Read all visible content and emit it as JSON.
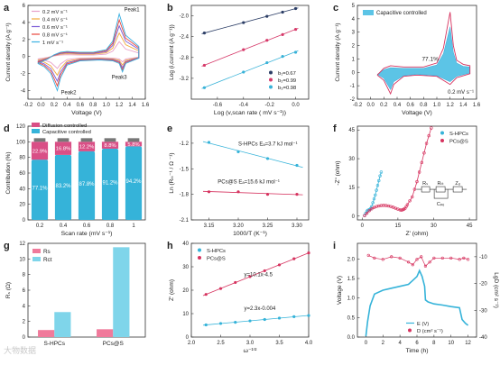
{
  "chart_data": [
    {
      "panel": "a",
      "type": "line",
      "xlabel": "Voltage (V)",
      "ylabel": "Current density (A g⁻¹)",
      "xlim": [
        -0.2,
        1.6
      ],
      "ylim": [
        -5,
        6
      ],
      "xticks": [
        "-0.2",
        "0.0",
        "0.2",
        "0.4",
        "0.6",
        "0.8",
        "1.0",
        "1.2",
        "1.4",
        "1.6"
      ],
      "yticks": [
        "-4",
        "-2",
        "0",
        "2",
        "4",
        "6"
      ],
      "legend_position": "top-left",
      "annotations": [
        "Peak1",
        "Peak2",
        "Peak3"
      ],
      "series": [
        {
          "name": "0.2 mV s⁻¹",
          "color": "#e8a0c8",
          "scale": 0.35
        },
        {
          "name": "0.4 mV s⁻¹",
          "color": "#f2a93b",
          "scale": 0.55
        },
        {
          "name": "0.6 mV s⁻¹",
          "color": "#7b5cd6",
          "scale": 0.72
        },
        {
          "name": "0.8 mV s⁻¹",
          "color": "#e8453c",
          "scale": 0.86
        },
        {
          "name": "1 mV s⁻¹",
          "color": "#3ab0e2",
          "scale": 1.0
        }
      ],
      "base_curve_x": [
        -0.05,
        0.1,
        0.2,
        0.3,
        0.4,
        0.6,
        0.8,
        1.0,
        1.1,
        1.2,
        1.3,
        1.5,
        1.5,
        1.3,
        1.25,
        1.2,
        1.1,
        0.9,
        0.6,
        0.4,
        0.3,
        0.25,
        0.15,
        0.05,
        -0.05
      ],
      "base_curve_y": [
        -0.8,
        -0.3,
        0.2,
        0.5,
        0.6,
        0.5,
        0.5,
        0.8,
        1.8,
        5.0,
        2.5,
        1.2,
        -0.2,
        -0.8,
        -1.8,
        -0.8,
        -0.5,
        -0.4,
        -0.5,
        -1.0,
        -2.5,
        -4.0,
        -2.0,
        -1.2,
        -0.8
      ]
    },
    {
      "panel": "b",
      "type": "scatter",
      "xlabel": "Log (v,scan rate ( mV s⁻¹))",
      "ylabel": "Log (i,current (A g⁻¹))",
      "xlim": [
        -0.8,
        0.1
      ],
      "ylim": [
        -3.6,
        -1.8
      ],
      "xticks": [
        "-0.6",
        "-0.4",
        "-0.2",
        "0.0"
      ],
      "yticks": [
        "-2.0",
        "-2.4",
        "-2.8",
        "-3.2"
      ],
      "legend_position": "bottom-right",
      "x": [
        -0.7,
        -0.4,
        -0.22,
        -0.1,
        0.0
      ],
      "series": [
        {
          "name": "b₁=0.67",
          "color": "#2c3e66",
          "values": [
            -2.33,
            -2.13,
            -2.01,
            -1.93,
            -1.86
          ]
        },
        {
          "name": "b₂=0.99",
          "color": "#d63a6a",
          "values": [
            -2.95,
            -2.65,
            -2.47,
            -2.36,
            -2.26
          ]
        },
        {
          "name": "b₃=0.98",
          "color": "#38b2d8",
          "values": [
            -3.38,
            -3.08,
            -2.9,
            -2.78,
            -2.7
          ]
        }
      ]
    },
    {
      "panel": "c",
      "type": "line",
      "xlabel": "Voltage (V)",
      "ylabel": "Current density (A g⁻¹)",
      "xlim": [
        -0.2,
        1.6
      ],
      "ylim": [
        -2,
        5
      ],
      "xticks": [
        "-0.2",
        "0.0",
        "0.2",
        "0.4",
        "0.6",
        "0.8",
        "1.0",
        "1.2",
        "1.4",
        "1.6"
      ],
      "yticks": [
        "-2",
        "-1",
        "0",
        "1",
        "2",
        "3",
        "4",
        "5"
      ],
      "legend": "Capacitive controlled",
      "annotation": "77.1%",
      "annotation2": "0.2 mV s⁻¹",
      "total_x": [
        0.1,
        0.2,
        0.3,
        0.5,
        0.8,
        1.0,
        1.1,
        1.2,
        1.25,
        1.3,
        1.4,
        1.5,
        1.5,
        1.3,
        1.2,
        1.0,
        0.7,
        0.5,
        0.35,
        0.3,
        0.2,
        0.1
      ],
      "total_y": [
        -0.2,
        0.3,
        0.5,
        0.4,
        0.4,
        0.7,
        1.8,
        4.5,
        2.0,
        0.9,
        0.6,
        0.5,
        -0.1,
        -0.4,
        -0.9,
        -0.3,
        -0.2,
        -0.3,
        -0.9,
        -1.6,
        -0.6,
        -0.2
      ],
      "cap_x": [
        0.1,
        0.2,
        0.3,
        0.5,
        0.8,
        1.0,
        1.1,
        1.2,
        1.25,
        1.3,
        1.4,
        1.5,
        1.5,
        1.3,
        1.2,
        1.0,
        0.7,
        0.5,
        0.35,
        0.3,
        0.2,
        0.1
      ],
      "cap_y": [
        -0.15,
        0.2,
        0.35,
        0.3,
        0.3,
        0.55,
        1.4,
        3.4,
        1.5,
        0.7,
        0.45,
        0.4,
        -0.05,
        -0.3,
        -0.7,
        -0.25,
        -0.15,
        -0.25,
        -0.7,
        -1.3,
        -0.45,
        -0.15
      ]
    },
    {
      "panel": "d",
      "type": "bar",
      "xlabel": "Scan rate (mV s⁻¹)",
      "ylabel": "Contribution (%)",
      "ylim": [
        0,
        120
      ],
      "yticks": [
        "0",
        "20",
        "40",
        "60",
        "80",
        "100",
        "120"
      ],
      "categories": [
        "0.2",
        "0.4",
        "0.6",
        "0.8",
        "1"
      ],
      "series": [
        {
          "name": "Capacitive controlled",
          "color": "#35b3d9",
          "values": [
            77.1,
            83.2,
            87.8,
            91.2,
            94.2
          ]
        },
        {
          "name": "Diffusion controlled",
          "color": "#d94f86",
          "values": [
            22.9,
            16.8,
            12.2,
            8.8,
            5.8
          ]
        }
      ],
      "cap_labels": [
        "77.1%",
        "83.2%",
        "87.8%",
        "91.2%",
        "94.2%"
      ],
      "diff_labels": [
        "22.9%",
        "16.8%",
        "12.2%",
        "8.8%",
        "5.8%"
      ]
    },
    {
      "panel": "e",
      "type": "scatter",
      "xlabel": "1000/T (K⁻¹)",
      "ylabel": "Ln (Rₜₜ⁻¹ / Ω ⁻¹)",
      "xlim": [
        3.12,
        3.32
      ],
      "ylim": [
        -2.1,
        -1.0
      ],
      "xticks": [
        "3.15",
        "3.20",
        "3.25",
        "3.30"
      ],
      "yticks": [
        "-1.2",
        "-1.5",
        "-1.8",
        "-2.1"
      ],
      "x": [
        3.15,
        3.2,
        3.25,
        3.3
      ],
      "series": [
        {
          "name": "S-HPCs",
          "color": "#35b3d9",
          "values": [
            -1.19,
            -1.3,
            -1.38,
            -1.46
          ]
        },
        {
          "name": "PCs@S",
          "color": "#d6335f",
          "values": [
            -1.77,
            -1.77,
            -1.8,
            -1.8
          ]
        }
      ],
      "labels": [
        "S-HPCs Eₐ=3.7 kJ mol⁻¹",
        "PCs@S Eₐ=15.6 kJ mol⁻¹"
      ]
    },
    {
      "panel": "f",
      "type": "scatter",
      "xlabel": "Z' (ohm)",
      "ylabel": "-Z\" (ohm)",
      "xlim": [
        -2,
        48
      ],
      "ylim": [
        -2,
        47
      ],
      "xticks": [
        "0",
        "15",
        "30",
        "45"
      ],
      "yticks": [
        "0",
        "15",
        "30",
        "45"
      ],
      "legend_position": "top-right",
      "series": [
        {
          "name": "S-HPCs",
          "color": "#35b3d9",
          "x": [
            1,
            1.5,
            2,
            2.5,
            3,
            3.3,
            3.6,
            4,
            4.5,
            5,
            5.5,
            6,
            6.5,
            7,
            7.5,
            8
          ],
          "y": [
            0.3,
            1.5,
            2.6,
            3.1,
            3.3,
            3.5,
            4.0,
            5,
            7,
            9,
            11,
            13.5,
            16,
            18.5,
            21,
            23
          ]
        },
        {
          "name": "PCs@S",
          "color": "#d6335f",
          "x": [
            1,
            2,
            3,
            4,
            5,
            6,
            7,
            8,
            9,
            10,
            11,
            12,
            13,
            14,
            15,
            16,
            16.5,
            17,
            17.5,
            18,
            18.5,
            19,
            20,
            21,
            22,
            23,
            24,
            25,
            26,
            27,
            28,
            29
          ],
          "y": [
            0.2,
            1.5,
            2.8,
            3.8,
            4.5,
            5,
            5.3,
            5.5,
            5.6,
            5.5,
            5.3,
            5,
            4.6,
            4.1,
            3.6,
            3.2,
            3.1,
            3.3,
            3.6,
            4,
            5,
            6,
            8,
            10,
            14,
            18,
            23,
            28,
            33,
            38,
            42,
            46
          ]
        }
      ],
      "circuit_labels": [
        "Rₛ",
        "Rₜₜ",
        "Zᵤ",
        "Cₚₑ"
      ]
    },
    {
      "panel": "g",
      "type": "bar",
      "ylabel": "Rₛ (Ω)",
      "ylim": [
        0,
        12
      ],
      "yticks": [
        "0",
        "2",
        "4",
        "6",
        "8",
        "10",
        "12"
      ],
      "categories": [
        "S-HPCs",
        "PCs@S"
      ],
      "legend_position": "top-left",
      "series": [
        {
          "name": "Rs",
          "color": "#f07a9b",
          "values": [
            0.9,
            1.0
          ]
        },
        {
          "name": "Rct",
          "color": "#7fd5ea",
          "values": [
            3.2,
            11.5
          ]
        }
      ]
    },
    {
      "panel": "h",
      "type": "scatter",
      "xlabel": "ω⁻¹′²",
      "ylabel": "Z' (ohm)",
      "xlim": [
        2.0,
        4.0
      ],
      "ylim": [
        0,
        40
      ],
      "xticks": [
        "2.0",
        "2.5",
        "3.0",
        "3.5",
        "4.0"
      ],
      "yticks": [
        "0",
        "10",
        "20",
        "30",
        "40"
      ],
      "legend_position": "top-left",
      "x": [
        2.25,
        2.5,
        2.75,
        3.0,
        3.25,
        3.5,
        3.75,
        4.0
      ],
      "series": [
        {
          "name": "S-HPCs",
          "color": "#35b3d9",
          "values": [
            5.2,
            5.8,
            6.3,
            6.9,
            7.5,
            8.1,
            8.7,
            9.2
          ]
        },
        {
          "name": "PCs@S",
          "color": "#d6335f",
          "values": [
            18.2,
            20.7,
            23.3,
            25.8,
            28.3,
            30.8,
            33.4,
            35.9
          ]
        }
      ],
      "fit_labels": [
        "y=10.1x-4.5",
        "y=2.3x-0.004"
      ]
    },
    {
      "panel": "i",
      "type": "line",
      "xlabel": "Time (h)",
      "ylabel": "Voltage (V)",
      "ylabel_right": "LgD (cm² s⁻¹)",
      "xlim": [
        -1,
        13
      ],
      "ylim": [
        0,
        2.4
      ],
      "ylim_right": [
        -40,
        -5
      ],
      "xticks": [
        "0",
        "2",
        "4",
        "6",
        "8",
        "10",
        "12"
      ],
      "yticks": [
        "0.0",
        "0.5",
        "1.0",
        "1.5",
        "2.0"
      ],
      "yticks_right": [
        "-10",
        "-20",
        "-30",
        "-40"
      ],
      "legend_position": "bottom-right",
      "series": [
        {
          "name": "E (V)",
          "color": "#35b3d9",
          "x": [
            0,
            0.2,
            0.5,
            1,
            2,
            3,
            4,
            5,
            5.5,
            6,
            6.3,
            6.6,
            6.9,
            7,
            7.3,
            8,
            9,
            10,
            11,
            11.3,
            11.7,
            12
          ],
          "y": [
            0.02,
            0.4,
            0.8,
            1.1,
            1.2,
            1.25,
            1.3,
            1.35,
            1.45,
            1.55,
            1.7,
            1.55,
            1.3,
            0.95,
            0.9,
            0.85,
            0.82,
            0.78,
            0.75,
            0.45,
            0.35,
            0.3
          ]
        },
        {
          "name": "D (cm² s⁻¹)",
          "color": "#d6335f",
          "x": [
            0.3,
            1,
            2,
            3,
            4,
            5,
            5.5,
            6,
            6.5,
            7,
            7.5,
            8,
            9,
            10,
            11,
            11.5,
            12
          ],
          "y": [
            -9.5,
            -10.5,
            -11,
            -10,
            -10.5,
            -12,
            -13,
            -11,
            -10,
            -13.5,
            -12,
            -10.5,
            -10.5,
            -10.5,
            -11,
            -10.5,
            -11
          ]
        }
      ]
    }
  ],
  "watermark": "大物数据"
}
